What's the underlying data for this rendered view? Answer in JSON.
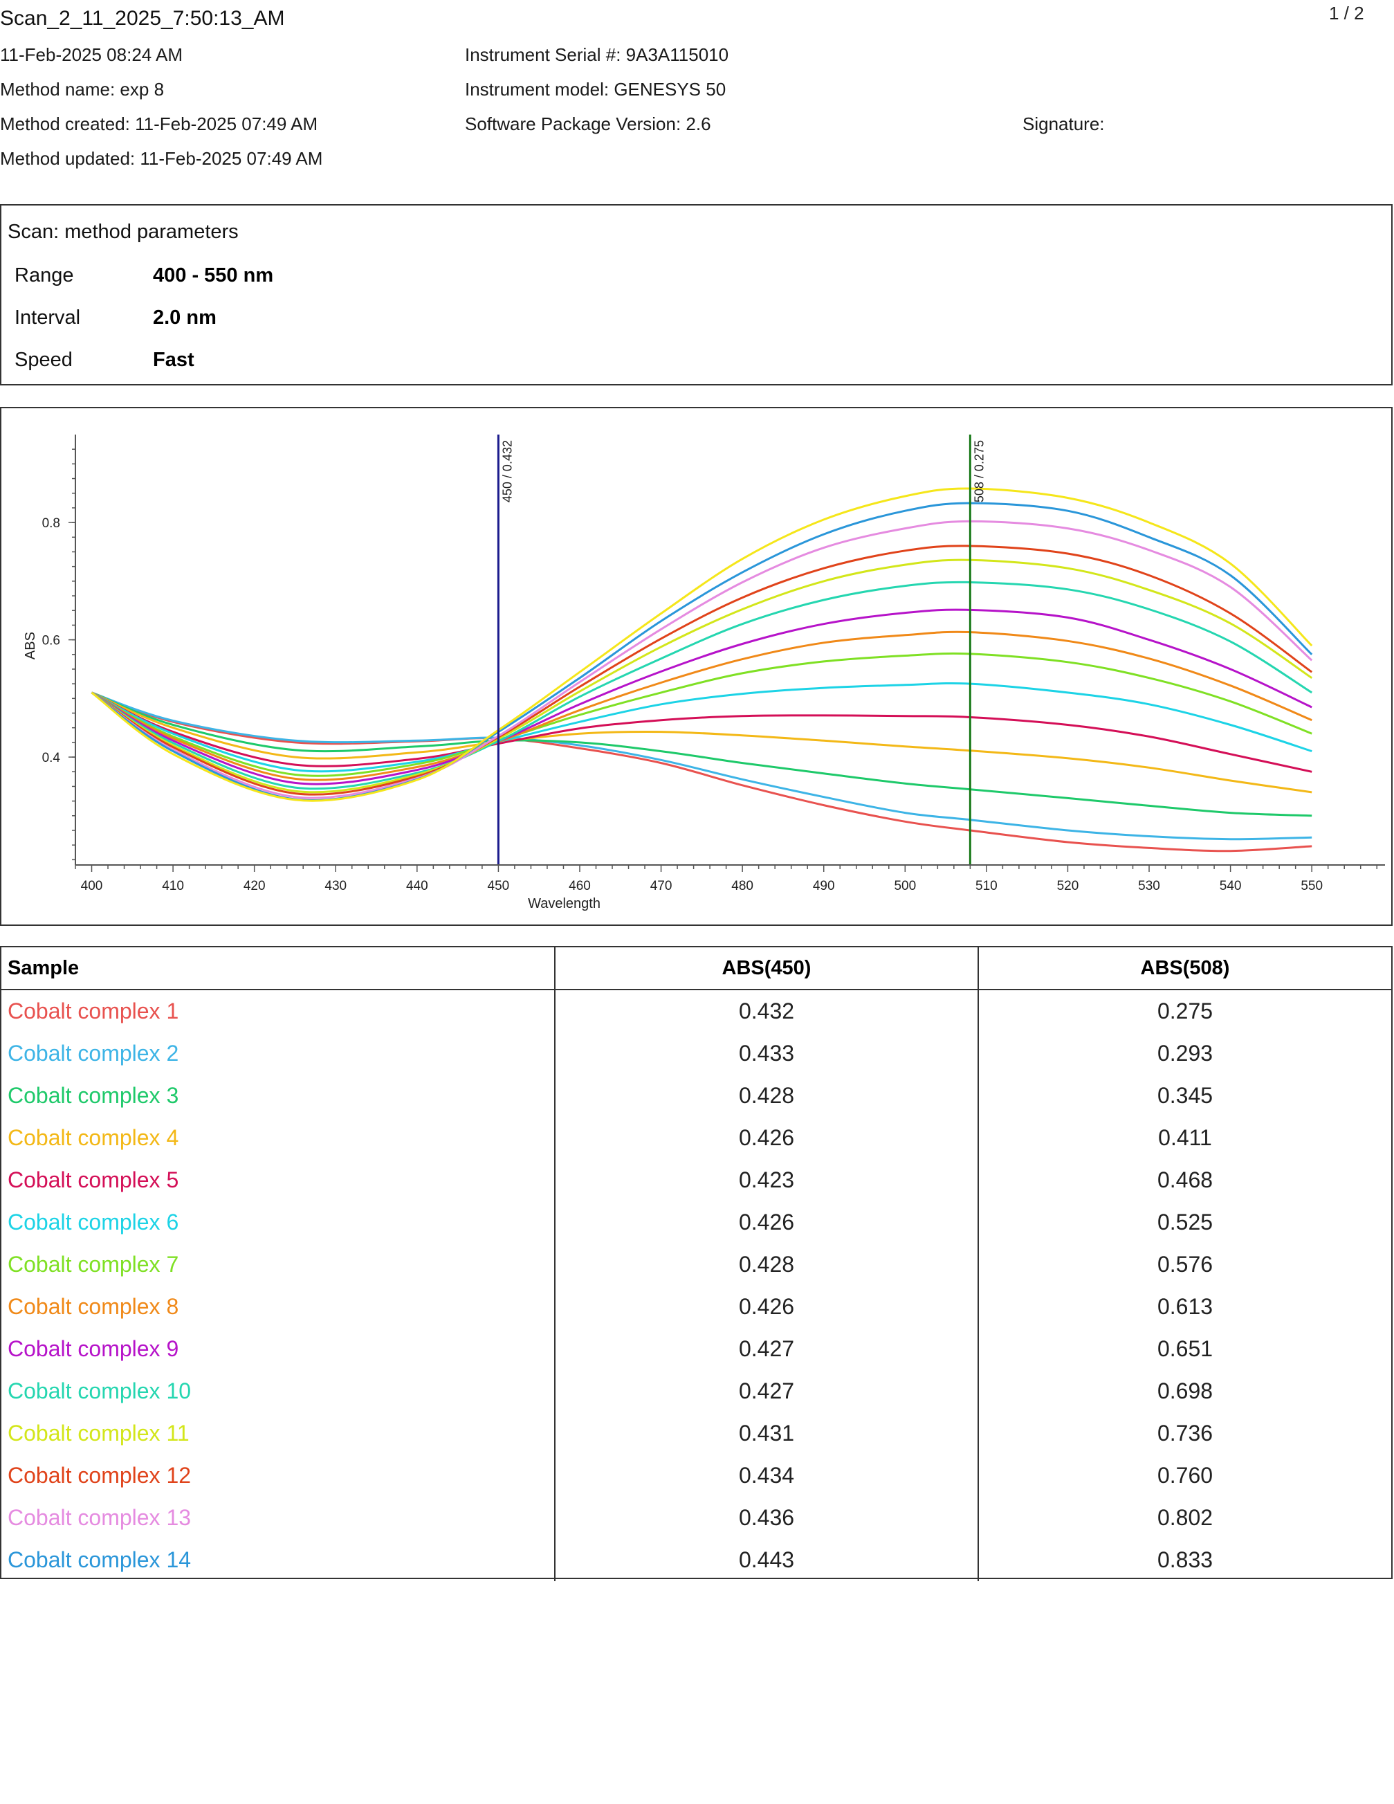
{
  "header": {
    "title": "Scan_2_11_2025_7:50:13_AM",
    "page": "1 / 2",
    "datetime": "11-Feb-2025 08:24 AM",
    "method_name": "Method name: exp 8",
    "method_created": "Method created: 11-Feb-2025 07:49 AM",
    "method_updated": "Method updated: 11-Feb-2025 07:49 AM",
    "serial": "Instrument Serial #: 9A3A115010",
    "model": "Instrument model: GENESYS 50",
    "software": "Software Package Version: 2.6",
    "signature": "Signature:"
  },
  "params": {
    "title": "Scan: method parameters",
    "rows": [
      {
        "label": "Range",
        "value": "400 - 550 nm"
      },
      {
        "label": "Interval",
        "value": "2.0 nm"
      },
      {
        "label": "Speed",
        "value": "Fast"
      }
    ]
  },
  "chart_data": {
    "type": "line",
    "xlabel": "Wavelength",
    "ylabel": "ABS",
    "xlim": [
      398,
      559
    ],
    "ylim": [
      0.216,
      0.95
    ],
    "x_ticks": [
      400,
      410,
      420,
      430,
      440,
      450,
      460,
      470,
      480,
      490,
      500,
      510,
      520,
      530,
      540,
      550
    ],
    "y_ticks": [
      0.4,
      0.6,
      0.8
    ],
    "grid": false,
    "legend": "none",
    "markers": [
      {
        "x": 450,
        "label": "450 / 0.432",
        "color": "#1a1a8c"
      },
      {
        "x": 508,
        "label": "508 / 0.275",
        "color": "#1b7a1b"
      }
    ],
    "series": [
      {
        "name": "Cobalt complex 1",
        "color": "#e8524f",
        "values": [
          [
            400,
            0.51
          ],
          [
            410,
            0.46
          ],
          [
            425,
            0.425
          ],
          [
            440,
            0.427
          ],
          [
            450,
            0.432
          ],
          [
            460,
            0.415
          ],
          [
            470,
            0.39
          ],
          [
            480,
            0.352
          ],
          [
            490,
            0.318
          ],
          [
            500,
            0.29
          ],
          [
            508,
            0.275
          ],
          [
            520,
            0.255
          ],
          [
            530,
            0.245
          ],
          [
            540,
            0.24
          ],
          [
            550,
            0.248
          ]
        ]
      },
      {
        "name": "Cobalt complex 2",
        "color": "#3db4e6",
        "values": [
          [
            400,
            0.51
          ],
          [
            410,
            0.462
          ],
          [
            425,
            0.428
          ],
          [
            440,
            0.428
          ],
          [
            450,
            0.433
          ],
          [
            460,
            0.42
          ],
          [
            470,
            0.395
          ],
          [
            480,
            0.362
          ],
          [
            490,
            0.332
          ],
          [
            500,
            0.305
          ],
          [
            508,
            0.293
          ],
          [
            520,
            0.275
          ],
          [
            530,
            0.265
          ],
          [
            540,
            0.26
          ],
          [
            550,
            0.263
          ]
        ]
      },
      {
        "name": "Cobalt complex 3",
        "color": "#1ec96a",
        "values": [
          [
            400,
            0.51
          ],
          [
            410,
            0.455
          ],
          [
            425,
            0.412
          ],
          [
            440,
            0.418
          ],
          [
            450,
            0.428
          ],
          [
            460,
            0.425
          ],
          [
            470,
            0.41
          ],
          [
            480,
            0.39
          ],
          [
            490,
            0.372
          ],
          [
            500,
            0.355
          ],
          [
            508,
            0.345
          ],
          [
            520,
            0.33
          ],
          [
            530,
            0.317
          ],
          [
            540,
            0.305
          ],
          [
            550,
            0.3
          ]
        ]
      },
      {
        "name": "Cobalt complex 4",
        "color": "#f3b817",
        "values": [
          [
            400,
            0.51
          ],
          [
            410,
            0.45
          ],
          [
            425,
            0.4
          ],
          [
            440,
            0.408
          ],
          [
            450,
            0.426
          ],
          [
            460,
            0.44
          ],
          [
            470,
            0.443
          ],
          [
            480,
            0.437
          ],
          [
            490,
            0.428
          ],
          [
            500,
            0.418
          ],
          [
            508,
            0.411
          ],
          [
            520,
            0.398
          ],
          [
            530,
            0.382
          ],
          [
            540,
            0.36
          ],
          [
            550,
            0.34
          ]
        ]
      },
      {
        "name": "Cobalt complex 5",
        "color": "#d40f57",
        "values": [
          [
            400,
            0.51
          ],
          [
            410,
            0.443
          ],
          [
            425,
            0.387
          ],
          [
            440,
            0.397
          ],
          [
            450,
            0.423
          ],
          [
            460,
            0.449
          ],
          [
            470,
            0.463
          ],
          [
            480,
            0.47
          ],
          [
            490,
            0.471
          ],
          [
            500,
            0.47
          ],
          [
            508,
            0.468
          ],
          [
            520,
            0.455
          ],
          [
            530,
            0.435
          ],
          [
            540,
            0.405
          ],
          [
            550,
            0.375
          ]
        ]
      },
      {
        "name": "Cobalt complex 6",
        "color": "#1cd3e6",
        "values": [
          [
            400,
            0.51
          ],
          [
            410,
            0.44
          ],
          [
            425,
            0.378
          ],
          [
            440,
            0.392
          ],
          [
            450,
            0.426
          ],
          [
            460,
            0.46
          ],
          [
            470,
            0.49
          ],
          [
            480,
            0.508
          ],
          [
            490,
            0.518
          ],
          [
            500,
            0.523
          ],
          [
            508,
            0.525
          ],
          [
            520,
            0.51
          ],
          [
            530,
            0.49
          ],
          [
            540,
            0.455
          ],
          [
            550,
            0.41
          ]
        ]
      },
      {
        "name": "Cobalt complex 7",
        "color": "#7fe024",
        "values": [
          [
            400,
            0.51
          ],
          [
            410,
            0.435
          ],
          [
            425,
            0.37
          ],
          [
            440,
            0.388
          ],
          [
            450,
            0.428
          ],
          [
            460,
            0.472
          ],
          [
            470,
            0.51
          ],
          [
            480,
            0.543
          ],
          [
            490,
            0.563
          ],
          [
            500,
            0.573
          ],
          [
            508,
            0.576
          ],
          [
            520,
            0.562
          ],
          [
            530,
            0.535
          ],
          [
            540,
            0.495
          ],
          [
            550,
            0.44
          ]
        ]
      },
      {
        "name": "Cobalt complex 8",
        "color": "#f08918",
        "values": [
          [
            400,
            0.51
          ],
          [
            410,
            0.432
          ],
          [
            425,
            0.363
          ],
          [
            440,
            0.383
          ],
          [
            450,
            0.426
          ],
          [
            460,
            0.48
          ],
          [
            470,
            0.527
          ],
          [
            480,
            0.567
          ],
          [
            490,
            0.595
          ],
          [
            500,
            0.608
          ],
          [
            508,
            0.613
          ],
          [
            520,
            0.598
          ],
          [
            530,
            0.568
          ],
          [
            540,
            0.522
          ],
          [
            550,
            0.463
          ]
        ]
      },
      {
        "name": "Cobalt complex 9",
        "color": "#b613c9",
        "values": [
          [
            400,
            0.51
          ],
          [
            410,
            0.428
          ],
          [
            425,
            0.356
          ],
          [
            440,
            0.378
          ],
          [
            450,
            0.427
          ],
          [
            460,
            0.49
          ],
          [
            470,
            0.546
          ],
          [
            480,
            0.593
          ],
          [
            490,
            0.627
          ],
          [
            500,
            0.646
          ],
          [
            508,
            0.651
          ],
          [
            520,
            0.638
          ],
          [
            530,
            0.6
          ],
          [
            540,
            0.55
          ],
          [
            550,
            0.485
          ]
        ]
      },
      {
        "name": "Cobalt complex 10",
        "color": "#25d6b0",
        "values": [
          [
            400,
            0.51
          ],
          [
            410,
            0.424
          ],
          [
            425,
            0.348
          ],
          [
            440,
            0.373
          ],
          [
            450,
            0.427
          ],
          [
            460,
            0.503
          ],
          [
            470,
            0.568
          ],
          [
            480,
            0.627
          ],
          [
            490,
            0.668
          ],
          [
            500,
            0.692
          ],
          [
            508,
            0.698
          ],
          [
            520,
            0.686
          ],
          [
            530,
            0.652
          ],
          [
            540,
            0.597
          ],
          [
            550,
            0.51
          ]
        ]
      },
      {
        "name": "Cobalt complex 11",
        "color": "#d3e61a",
        "values": [
          [
            400,
            0.51
          ],
          [
            410,
            0.42
          ],
          [
            425,
            0.342
          ],
          [
            440,
            0.37
          ],
          [
            450,
            0.431
          ],
          [
            460,
            0.512
          ],
          [
            470,
            0.588
          ],
          [
            480,
            0.652
          ],
          [
            490,
            0.7
          ],
          [
            500,
            0.728
          ],
          [
            508,
            0.736
          ],
          [
            520,
            0.722
          ],
          [
            530,
            0.685
          ],
          [
            540,
            0.628
          ],
          [
            550,
            0.535
          ]
        ]
      },
      {
        "name": "Cobalt complex 12",
        "color": "#e0431a",
        "values": [
          [
            400,
            0.51
          ],
          [
            410,
            0.417
          ],
          [
            425,
            0.338
          ],
          [
            440,
            0.367
          ],
          [
            450,
            0.434
          ],
          [
            460,
            0.52
          ],
          [
            470,
            0.602
          ],
          [
            480,
            0.672
          ],
          [
            490,
            0.722
          ],
          [
            500,
            0.752
          ],
          [
            508,
            0.76
          ],
          [
            520,
            0.747
          ],
          [
            530,
            0.71
          ],
          [
            540,
            0.645
          ],
          [
            550,
            0.545
          ]
        ]
      },
      {
        "name": "Cobalt complex 13",
        "color": "#e58be0",
        "values": [
          [
            400,
            0.51
          ],
          [
            410,
            0.413
          ],
          [
            425,
            0.332
          ],
          [
            440,
            0.364
          ],
          [
            450,
            0.436
          ],
          [
            460,
            0.528
          ],
          [
            470,
            0.618
          ],
          [
            480,
            0.698
          ],
          [
            490,
            0.757
          ],
          [
            500,
            0.79
          ],
          [
            508,
            0.802
          ],
          [
            520,
            0.79
          ],
          [
            530,
            0.753
          ],
          [
            540,
            0.69
          ],
          [
            550,
            0.565
          ]
        ]
      },
      {
        "name": "Cobalt complex 14",
        "color": "#2a96d9",
        "values": [
          [
            400,
            0.51
          ],
          [
            410,
            0.41
          ],
          [
            425,
            0.328
          ],
          [
            440,
            0.362
          ],
          [
            450,
            0.443
          ],
          [
            460,
            0.535
          ],
          [
            470,
            0.632
          ],
          [
            480,
            0.715
          ],
          [
            490,
            0.78
          ],
          [
            500,
            0.82
          ],
          [
            508,
            0.833
          ],
          [
            520,
            0.82
          ],
          [
            530,
            0.775
          ],
          [
            540,
            0.71
          ],
          [
            550,
            0.575
          ]
        ]
      },
      {
        "name": "",
        "color": "#f5e61a",
        "values": [
          [
            400,
            0.51
          ],
          [
            410,
            0.405
          ],
          [
            425,
            0.327
          ],
          [
            440,
            0.361
          ],
          [
            450,
            0.446
          ],
          [
            460,
            0.545
          ],
          [
            470,
            0.645
          ],
          [
            480,
            0.738
          ],
          [
            490,
            0.805
          ],
          [
            500,
            0.845
          ],
          [
            508,
            0.858
          ],
          [
            520,
            0.842
          ],
          [
            530,
            0.8
          ],
          [
            540,
            0.73
          ],
          [
            550,
            0.59
          ]
        ]
      }
    ]
  },
  "table": {
    "headers": [
      "Sample",
      "ABS(450)",
      "ABS(508)"
    ],
    "rows": [
      {
        "sample": "Cobalt complex 1",
        "abs450": "0.432",
        "abs508": "0.275",
        "color": "#e8524f"
      },
      {
        "sample": "Cobalt complex 2",
        "abs450": "0.433",
        "abs508": "0.293",
        "color": "#3db4e6"
      },
      {
        "sample": "Cobalt complex 3",
        "abs450": "0.428",
        "abs508": "0.345",
        "color": "#1ec96a"
      },
      {
        "sample": "Cobalt complex 4",
        "abs450": "0.426",
        "abs508": "0.411",
        "color": "#f3b817"
      },
      {
        "sample": "Cobalt complex 5",
        "abs450": "0.423",
        "abs508": "0.468",
        "color": "#d40f57"
      },
      {
        "sample": "Cobalt complex 6",
        "abs450": "0.426",
        "abs508": "0.525",
        "color": "#1cd3e6"
      },
      {
        "sample": "Cobalt complex 7",
        "abs450": "0.428",
        "abs508": "0.576",
        "color": "#7fe024"
      },
      {
        "sample": "Cobalt complex 8",
        "abs450": "0.426",
        "abs508": "0.613",
        "color": "#f08918"
      },
      {
        "sample": "Cobalt complex 9",
        "abs450": "0.427",
        "abs508": "0.651",
        "color": "#b613c9"
      },
      {
        "sample": "Cobalt complex 10",
        "abs450": "0.427",
        "abs508": "0.698",
        "color": "#25d6b0"
      },
      {
        "sample": "Cobalt complex 11",
        "abs450": "0.431",
        "abs508": "0.736",
        "color": "#d3e61a"
      },
      {
        "sample": "Cobalt complex 12",
        "abs450": "0.434",
        "abs508": "0.760",
        "color": "#e0431a"
      },
      {
        "sample": "Cobalt complex 13",
        "abs450": "0.436",
        "abs508": "0.802",
        "color": "#e58be0"
      },
      {
        "sample": "Cobalt complex 14",
        "abs450": "0.443",
        "abs508": "0.833",
        "color": "#2a96d9"
      }
    ]
  }
}
